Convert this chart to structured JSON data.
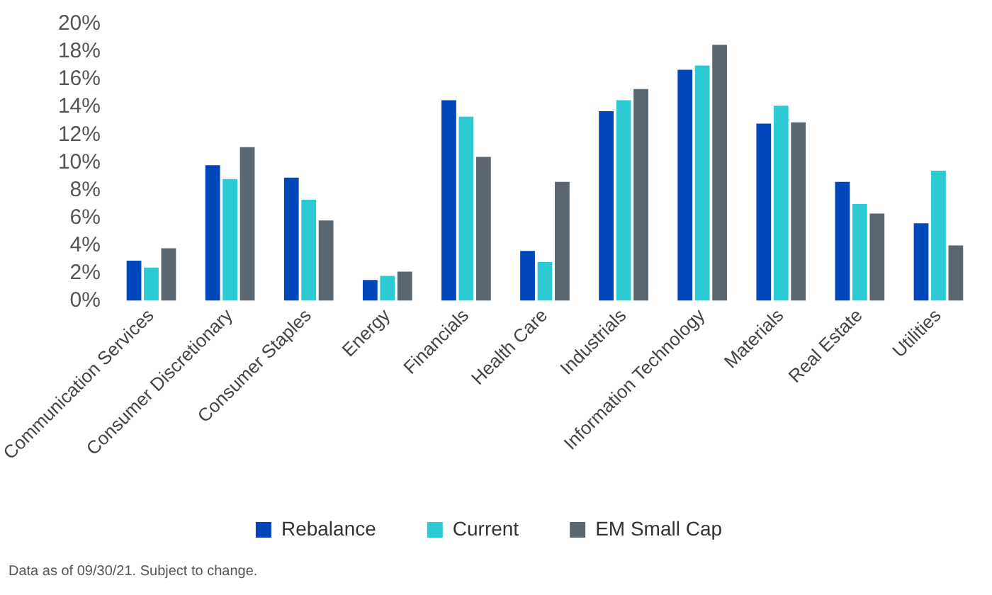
{
  "chart_data": {
    "type": "bar",
    "categories": [
      "Communication Services",
      "Consumer Discretionary",
      "Consumer Staples",
      "Energy",
      "Financials",
      "Health Care",
      "Industrials",
      "Information Technology",
      "Materials",
      "Real Estate",
      "Utilities"
    ],
    "series": [
      {
        "name": "Rebalance",
        "color": "#0047bb",
        "values": [
          2.9,
          9.8,
          8.9,
          1.5,
          14.5,
          3.6,
          13.7,
          16.7,
          12.8,
          8.6,
          5.6
        ]
      },
      {
        "name": "Current",
        "color": "#2ccbd3",
        "values": [
          2.4,
          8.8,
          7.3,
          1.8,
          13.3,
          2.8,
          14.5,
          17.0,
          14.1,
          7.0,
          9.4
        ]
      },
      {
        "name": "EM Small Cap",
        "color": "#5a6670",
        "values": [
          3.8,
          11.1,
          5.8,
          2.1,
          10.4,
          8.6,
          15.3,
          18.5,
          12.9,
          6.3,
          4.0
        ]
      }
    ],
    "ylim": [
      0,
      20
    ],
    "yticks": [
      {
        "value": 0,
        "label": "0%"
      },
      {
        "value": 2,
        "label": "2%"
      },
      {
        "value": 4,
        "label": "4%"
      },
      {
        "value": 6,
        "label": "6%"
      },
      {
        "value": 8,
        "label": "8%"
      },
      {
        "value": 10,
        "label": "10%"
      },
      {
        "value": 12,
        "label": "12%"
      },
      {
        "value": 14,
        "label": "14%"
      },
      {
        "value": 16,
        "label": "16%"
      },
      {
        "value": 18,
        "label": "18%"
      },
      {
        "value": 20,
        "label": "20%"
      }
    ],
    "grid": false,
    "legend": "bottom",
    "annotations": [
      "Data as of 09/30/21. Subject to change."
    ]
  }
}
